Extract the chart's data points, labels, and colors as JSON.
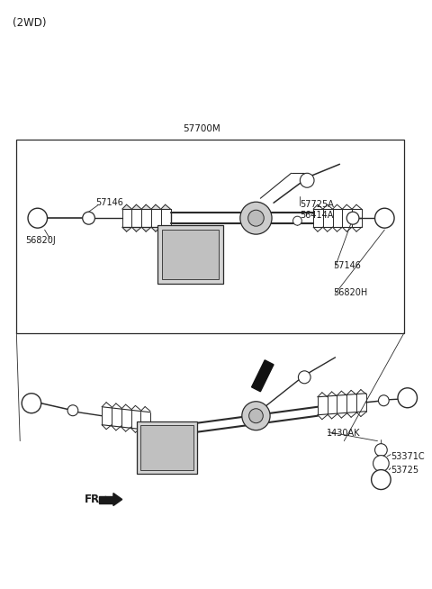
{
  "bg_color": "#ffffff",
  "line_color": "#2a2a2a",
  "text_color": "#1a1a1a",
  "fig_width": 4.8,
  "fig_height": 6.54,
  "dpi": 100,
  "label_2wd": "(2WD)",
  "label_57700M": "57700M",
  "label_57146_tl": "57146",
  "label_56820J": "56820J",
  "label_57725A": "57725A",
  "label_56414A": "56414A",
  "label_57146_tr": "57146",
  "label_56820H": "56820H",
  "label_1430AK": "1430AK",
  "label_53371C": "53371C",
  "label_53725": "53725",
  "label_FR": "FR."
}
